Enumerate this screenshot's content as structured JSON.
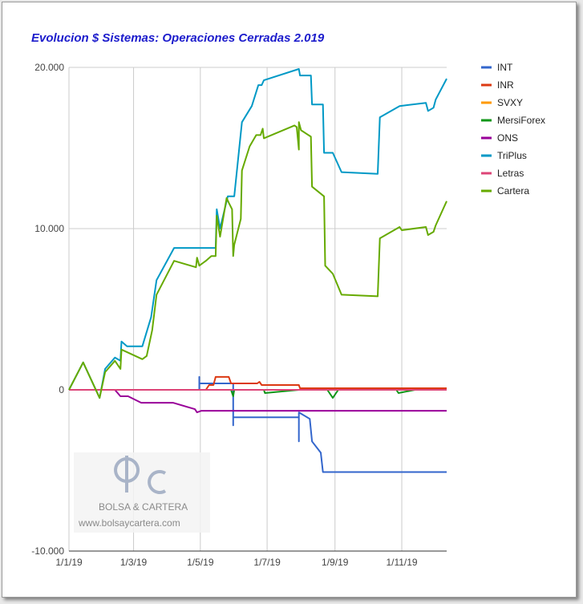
{
  "chart_data": {
    "type": "line",
    "title": "Evolucion $ Sistemas: Operaciones Cerradas 2.019",
    "xlabel": "",
    "ylabel": "",
    "x_ticks": [
      "1/1/19",
      "1/3/19",
      "1/5/19",
      "1/7/19",
      "1/9/19",
      "1/11/19"
    ],
    "x_tick_days": [
      0,
      59,
      120,
      181,
      243,
      304
    ],
    "x_range_days": [
      0,
      345
    ],
    "y_ticks": [
      "20.000",
      "10.000",
      "0",
      "-10.000"
    ],
    "y_tick_values": [
      20000,
      10000,
      0,
      -10000
    ],
    "ylim": [
      -10000,
      20000
    ],
    "grid": true,
    "legend_position": "right",
    "watermark": {
      "brand": "BOLSA & CARTERA",
      "url": "www.bolsaycartera.com"
    },
    "series": [
      {
        "name": "INT",
        "color": "#3366cc",
        "points": [
          [
            0,
            0
          ],
          [
            119,
            0
          ],
          [
            119,
            800
          ],
          [
            119,
            400
          ],
          [
            141,
            400
          ],
          [
            150,
            400
          ],
          [
            150,
            -2200
          ],
          [
            150,
            -1700
          ],
          [
            210,
            -1700
          ],
          [
            210,
            -3200
          ],
          [
            210,
            -1400
          ],
          [
            220,
            -1800
          ],
          [
            222,
            -3200
          ],
          [
            230,
            -3900
          ],
          [
            232,
            -5100
          ],
          [
            345,
            -5100
          ]
        ]
      },
      {
        "name": "INR",
        "color": "#dc3912",
        "points": [
          [
            0,
            0
          ],
          [
            125,
            0
          ],
          [
            128,
            300
          ],
          [
            132,
            300
          ],
          [
            134,
            800
          ],
          [
            146,
            800
          ],
          [
            148,
            400
          ],
          [
            172,
            400
          ],
          [
            174,
            500
          ],
          [
            176,
            300
          ],
          [
            210,
            300
          ],
          [
            211,
            100
          ],
          [
            345,
            100
          ]
        ]
      },
      {
        "name": "SVXY",
        "color": "#ff9900",
        "points": [
          [
            0,
            0
          ],
          [
            345,
            0
          ]
        ]
      },
      {
        "name": "MersiForex",
        "color": "#109618",
        "points": [
          [
            0,
            0
          ],
          [
            148,
            0
          ],
          [
            150,
            -400
          ],
          [
            151,
            0
          ],
          [
            178,
            0
          ],
          [
            179,
            -200
          ],
          [
            210,
            0
          ],
          [
            236,
            0
          ],
          [
            241,
            -500
          ],
          [
            246,
            0
          ],
          [
            299,
            0
          ],
          [
            301,
            -200
          ],
          [
            316,
            0
          ],
          [
            345,
            0
          ]
        ]
      },
      {
        "name": "ONS",
        "color": "#990099",
        "points": [
          [
            0,
            0
          ],
          [
            42,
            0
          ],
          [
            47,
            -400
          ],
          [
            54,
            -400
          ],
          [
            66,
            -800
          ],
          [
            95,
            -800
          ],
          [
            115,
            -1200
          ],
          [
            117,
            -1400
          ],
          [
            121,
            -1300
          ],
          [
            345,
            -1300
          ]
        ]
      },
      {
        "name": "TriPlus",
        "color": "#0099c6",
        "points": [
          [
            0,
            0
          ],
          [
            13,
            1700
          ],
          [
            28,
            -500
          ],
          [
            33,
            1300
          ],
          [
            42,
            2000
          ],
          [
            47,
            1800
          ],
          [
            48,
            3000
          ],
          [
            53,
            2700
          ],
          [
            67,
            2700
          ],
          [
            75,
            4500
          ],
          [
            80,
            6800
          ],
          [
            96,
            8800
          ],
          [
            134,
            8800
          ],
          [
            135,
            11200
          ],
          [
            138,
            10000
          ],
          [
            145,
            12000
          ],
          [
            151,
            12000
          ],
          [
            158,
            16600
          ],
          [
            167,
            17600
          ],
          [
            173,
            18900
          ],
          [
            176,
            18900
          ],
          [
            178,
            19200
          ],
          [
            210,
            19900
          ],
          [
            211,
            19500
          ],
          [
            221,
            19500
          ],
          [
            222,
            17700
          ],
          [
            232,
            17700
          ],
          [
            233,
            14700
          ],
          [
            241,
            14700
          ],
          [
            249,
            13500
          ],
          [
            282,
            13400
          ],
          [
            284,
            16900
          ],
          [
            302,
            17600
          ],
          [
            326,
            17800
          ],
          [
            328,
            17300
          ],
          [
            333,
            17500
          ],
          [
            335,
            18000
          ],
          [
            345,
            19300
          ]
        ]
      },
      {
        "name": "Letras",
        "color": "#dd4477",
        "points": [
          [
            0,
            0
          ],
          [
            345,
            0
          ]
        ]
      },
      {
        "name": "Cartera",
        "color": "#66aa00",
        "points": [
          [
            0,
            0
          ],
          [
            13,
            1700
          ],
          [
            28,
            -500
          ],
          [
            33,
            1100
          ],
          [
            42,
            1800
          ],
          [
            47,
            1300
          ],
          [
            48,
            2500
          ],
          [
            67,
            1900
          ],
          [
            71,
            2100
          ],
          [
            76,
            3700
          ],
          [
            80,
            5900
          ],
          [
            96,
            8000
          ],
          [
            116,
            7600
          ],
          [
            117,
            8200
          ],
          [
            119,
            7700
          ],
          [
            125,
            8000
          ],
          [
            130,
            8300
          ],
          [
            134,
            8300
          ],
          [
            135,
            10800
          ],
          [
            138,
            9500
          ],
          [
            144,
            11900
          ],
          [
            146,
            11600
          ],
          [
            149,
            11200
          ],
          [
            150,
            8300
          ],
          [
            151,
            9000
          ],
          [
            157,
            10600
          ],
          [
            158,
            13600
          ],
          [
            165,
            15100
          ],
          [
            171,
            15800
          ],
          [
            175,
            15800
          ],
          [
            177,
            16200
          ],
          [
            178,
            15600
          ],
          [
            206,
            16400
          ],
          [
            208,
            16300
          ],
          [
            210,
            14900
          ],
          [
            210,
            16600
          ],
          [
            212,
            16100
          ],
          [
            221,
            15700
          ],
          [
            222,
            12600
          ],
          [
            233,
            12000
          ],
          [
            234,
            7700
          ],
          [
            241,
            7200
          ],
          [
            249,
            5900
          ],
          [
            282,
            5800
          ],
          [
            284,
            9400
          ],
          [
            302,
            10100
          ],
          [
            304,
            9900
          ],
          [
            326,
            10100
          ],
          [
            328,
            9600
          ],
          [
            333,
            9800
          ],
          [
            335,
            10200
          ],
          [
            345,
            11700
          ]
        ]
      }
    ]
  }
}
